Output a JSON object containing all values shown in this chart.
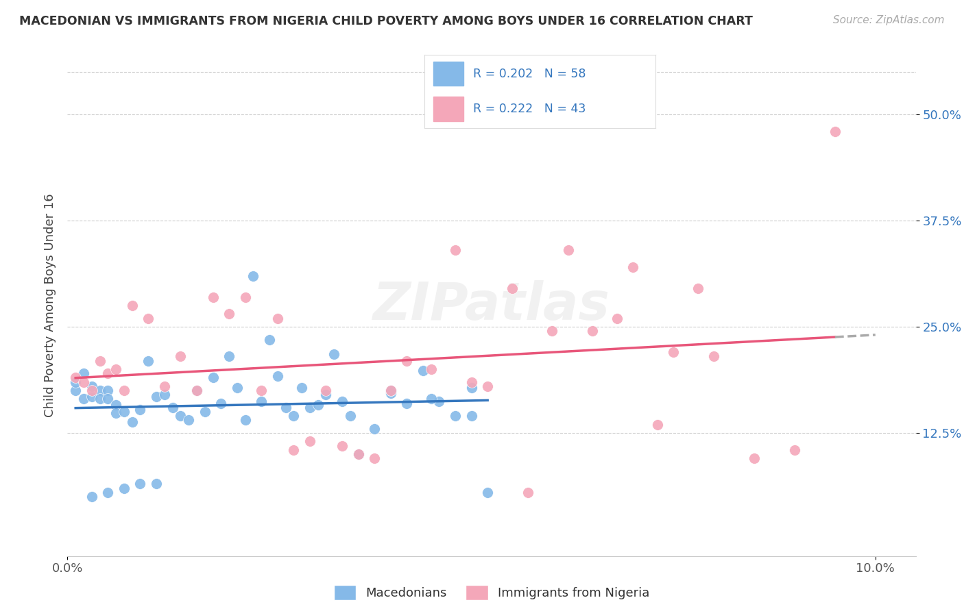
{
  "title": "MACEDONIAN VS IMMIGRANTS FROM NIGERIA CHILD POVERTY AMONG BOYS UNDER 16 CORRELATION CHART",
  "source": "Source: ZipAtlas.com",
  "ylabel": "Child Poverty Among Boys Under 16",
  "ytick_labels": [
    "12.5%",
    "25.0%",
    "37.5%",
    "50.0%"
  ],
  "xlim": [
    0.0,
    0.105
  ],
  "ylim": [
    -0.02,
    0.57
  ],
  "yticks": [
    0.125,
    0.25,
    0.375,
    0.5
  ],
  "xtick_labels": [
    "0.0%",
    "10.0%"
  ],
  "xtick_vals": [
    0.0,
    0.1
  ],
  "blue_color": "#85b9e8",
  "pink_color": "#f4a7b9",
  "blue_line_color": "#3577be",
  "pink_line_color": "#e8567a",
  "text_color": "#3577be",
  "r_blue": 0.202,
  "n_blue": 58,
  "r_pink": 0.222,
  "n_pink": 43,
  "macedonians_label": "Macedonians",
  "nigeria_label": "Immigrants from Nigeria",
  "macedonians_x": [
    0.001,
    0.001,
    0.002,
    0.002,
    0.003,
    0.003,
    0.004,
    0.004,
    0.005,
    0.005,
    0.006,
    0.006,
    0.007,
    0.008,
    0.009,
    0.01,
    0.011,
    0.012,
    0.013,
    0.014,
    0.015,
    0.016,
    0.017,
    0.018,
    0.019,
    0.02,
    0.021,
    0.022,
    0.023,
    0.024,
    0.025,
    0.026,
    0.027,
    0.028,
    0.029,
    0.03,
    0.031,
    0.032,
    0.033,
    0.034,
    0.035,
    0.036,
    0.038,
    0.04,
    0.042,
    0.044,
    0.046,
    0.048,
    0.05,
    0.052,
    0.003,
    0.005,
    0.007,
    0.009,
    0.011,
    0.04,
    0.045,
    0.05
  ],
  "macedonians_y": [
    0.175,
    0.185,
    0.165,
    0.195,
    0.168,
    0.18,
    0.175,
    0.165,
    0.175,
    0.165,
    0.158,
    0.148,
    0.15,
    0.138,
    0.152,
    0.21,
    0.168,
    0.17,
    0.155,
    0.145,
    0.14,
    0.175,
    0.15,
    0.19,
    0.16,
    0.215,
    0.178,
    0.14,
    0.31,
    0.162,
    0.235,
    0.192,
    0.155,
    0.145,
    0.178,
    0.155,
    0.158,
    0.17,
    0.218,
    0.162,
    0.145,
    0.1,
    0.13,
    0.172,
    0.16,
    0.198,
    0.162,
    0.145,
    0.178,
    0.055,
    0.05,
    0.055,
    0.06,
    0.065,
    0.065,
    0.175,
    0.165,
    0.145
  ],
  "nigeria_x": [
    0.001,
    0.002,
    0.003,
    0.004,
    0.005,
    0.006,
    0.007,
    0.008,
    0.01,
    0.012,
    0.014,
    0.016,
    0.018,
    0.02,
    0.022,
    0.024,
    0.026,
    0.028,
    0.03,
    0.032,
    0.034,
    0.036,
    0.038,
    0.04,
    0.042,
    0.045,
    0.048,
    0.05,
    0.052,
    0.055,
    0.057,
    0.06,
    0.062,
    0.065,
    0.068,
    0.07,
    0.073,
    0.075,
    0.078,
    0.08,
    0.085,
    0.09,
    0.095
  ],
  "nigeria_y": [
    0.19,
    0.185,
    0.175,
    0.21,
    0.195,
    0.2,
    0.175,
    0.275,
    0.26,
    0.18,
    0.215,
    0.175,
    0.285,
    0.265,
    0.285,
    0.175,
    0.26,
    0.105,
    0.115,
    0.175,
    0.11,
    0.1,
    0.095,
    0.175,
    0.21,
    0.2,
    0.34,
    0.185,
    0.18,
    0.295,
    0.055,
    0.245,
    0.34,
    0.245,
    0.26,
    0.32,
    0.135,
    0.22,
    0.295,
    0.215,
    0.095,
    0.105,
    0.48
  ]
}
